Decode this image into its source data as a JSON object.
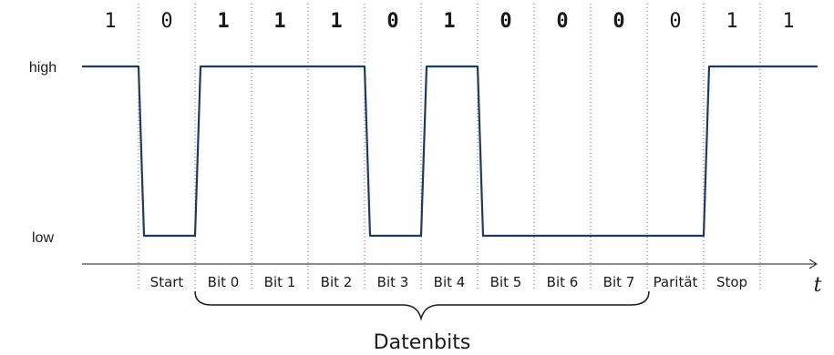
{
  "levels": {
    "high": "high",
    "low": "low"
  },
  "bits": [
    "1",
    "0",
    "1",
    "1",
    "1",
    "0",
    "1",
    "0",
    "0",
    "0",
    "0",
    "1",
    "1"
  ],
  "slots": [
    "Start",
    "Bit 0",
    "Bit 1",
    "Bit 2",
    "Bit 3",
    "Bit 4",
    "Bit 5",
    "Bit 6",
    "Bit 7",
    "Parität",
    "Stop"
  ],
  "time_label": "t",
  "group_label": "Datenbits",
  "colors": {
    "signal": "#1f3a5f",
    "text": "#1a1a1a"
  }
}
